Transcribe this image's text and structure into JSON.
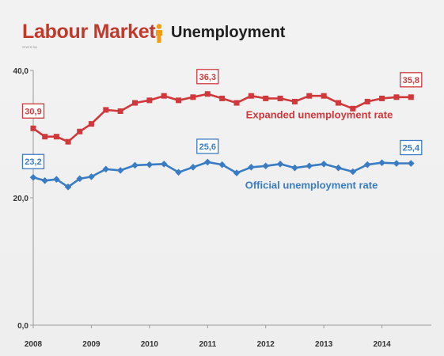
{
  "header": {
    "title": "Labour Market",
    "subtitle": "Unemployment",
    "brand_small": "STATS SA"
  },
  "colors": {
    "title_red": "#c0392b",
    "expanded": "#d0393b",
    "official": "#3a7cc4",
    "icon_orange": "#f39c12",
    "axis": "#9a9a9a"
  },
  "icons": {
    "header_icon": "person-icon"
  },
  "chart_data": {
    "type": "line",
    "title": "",
    "xlabel": "",
    "ylabel": "",
    "ylim": [
      0,
      40
    ],
    "xlim": [
      2008,
      2014.85
    ],
    "x_ticks": [
      2008,
      2009,
      2010,
      2011,
      2012,
      2013,
      2014
    ],
    "x_tick_labels": [
      "2008",
      "2009",
      "2010",
      "2011",
      "2012",
      "2013",
      "2014"
    ],
    "y_ticks": [
      0,
      20,
      40
    ],
    "y_tick_labels": [
      "0,0",
      "20,0",
      "40,0"
    ],
    "grid": false,
    "x": [
      2008.0,
      2008.2,
      2008.4,
      2008.6,
      2008.8,
      2009.0,
      2009.25,
      2009.5,
      2009.75,
      2010.0,
      2010.25,
      2010.5,
      2010.75,
      2011.0,
      2011.25,
      2011.5,
      2011.75,
      2012.0,
      2012.25,
      2012.5,
      2012.75,
      2013.0,
      2013.25,
      2013.5,
      2013.75,
      2014.0,
      2014.25,
      2014.5
    ],
    "series": [
      {
        "name": "Expanded unemployment rate",
        "color": "#d0393b",
        "marker": "square",
        "values": [
          30.9,
          29.6,
          29.6,
          28.8,
          30.4,
          31.6,
          33.8,
          33.6,
          34.9,
          35.3,
          36.0,
          35.3,
          35.8,
          36.3,
          35.6,
          34.9,
          36.0,
          35.6,
          35.6,
          35.1,
          36.0,
          36.0,
          34.9,
          34.0,
          35.1,
          35.6,
          35.8,
          35.8
        ],
        "callouts": [
          {
            "index": 0,
            "text": "30,9"
          },
          {
            "index": 13,
            "text": "36,3"
          },
          {
            "index": 27,
            "text": "35,8"
          }
        ],
        "label_position": "above line, center-right"
      },
      {
        "name": "Official unemployment rate",
        "color": "#3a7cc4",
        "marker": "diamond",
        "values": [
          23.2,
          22.7,
          22.9,
          21.7,
          23.0,
          23.3,
          24.5,
          24.3,
          25.1,
          25.2,
          25.3,
          24.0,
          24.8,
          25.6,
          25.2,
          23.9,
          24.8,
          25.0,
          25.3,
          24.7,
          25.0,
          25.3,
          24.7,
          24.1,
          25.2,
          25.5,
          25.4,
          25.4
        ],
        "callouts": [
          {
            "index": 0,
            "text": "23,2"
          },
          {
            "index": 13,
            "text": "25,6"
          },
          {
            "index": 27,
            "text": "25,4"
          }
        ],
        "label_position": "below line, center-right"
      }
    ]
  }
}
